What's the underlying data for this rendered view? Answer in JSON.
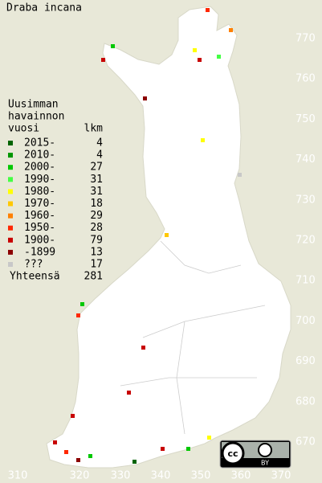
{
  "title": "Draba incana",
  "legend": {
    "heading": [
      "Uusimman",
      "havainnon"
    ],
    "col_year": "vuosi",
    "col_count": "lkm",
    "entries": [
      {
        "label": "2015-",
        "count": 4,
        "color": "#006400"
      },
      {
        "label": "2010-",
        "count": 4,
        "color": "#009600"
      },
      {
        "label": "2000-",
        "count": 27,
        "color": "#00c800"
      },
      {
        "label": "1990-",
        "count": 31,
        "color": "#44ff44"
      },
      {
        "label": "1980-",
        "count": 31,
        "color": "#ffff00"
      },
      {
        "label": "1970-",
        "count": 18,
        "color": "#ffc800"
      },
      {
        "label": "1960-",
        "count": 29,
        "color": "#ff8000"
      },
      {
        "label": "1950-",
        "count": 28,
        "color": "#ff2800"
      },
      {
        "label": "1900-",
        "count": 79,
        "color": "#c80000"
      },
      {
        "label": "-1899",
        "count": 13,
        "color": "#8c0000"
      },
      {
        "label": "???",
        "count": 17,
        "color": "#c8c8c8"
      }
    ],
    "total_label": "Yhteensä",
    "total": 281
  },
  "grid_labels": {
    "north": [
      770,
      760,
      750,
      740,
      730,
      720,
      710,
      700,
      690,
      680,
      670
    ],
    "east": [
      310,
      320,
      330,
      340,
      350,
      360,
      370
    ]
  },
  "license": {
    "logo": "cc",
    "label": "BY"
  }
}
